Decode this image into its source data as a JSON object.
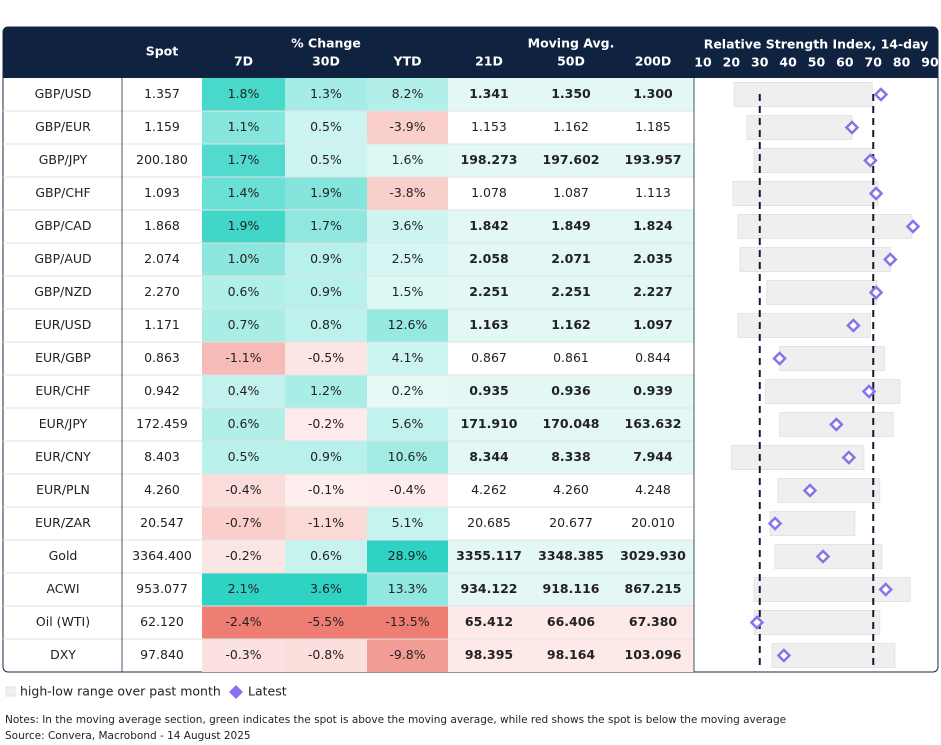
{
  "table": {
    "headers": {
      "spot": "Spot",
      "pct_change": "% Change",
      "moving_avg": "Moving Avg.",
      "columns": [
        "7D",
        "30D",
        "YTD",
        "21D",
        "50D",
        "200D"
      ]
    },
    "heat_colors": {
      "positive": "#2ed3c3",
      "negative": "#ee7d74"
    },
    "ma_colors": {
      "above": "#1cc1aa",
      "below": "#e2655d",
      "above_fill": "#e3f8f4",
      "below_fill": "#fde9e8"
    },
    "rows": [
      {
        "name": "GBP/USD",
        "spot": "1.357",
        "pct": [
          "1.8%",
          "1.3%",
          "8.2%"
        ],
        "ma": [
          "1.341",
          "1.350",
          "1.300"
        ]
      },
      {
        "name": "GBP/EUR",
        "spot": "1.159",
        "pct": [
          "1.1%",
          "0.5%",
          "-3.9%"
        ],
        "ma": [
          "1.153",
          "1.162",
          "1.185"
        ]
      },
      {
        "name": "GBP/JPY",
        "spot": "200.180",
        "pct": [
          "1.7%",
          "0.5%",
          "1.6%"
        ],
        "ma": [
          "198.273",
          "197.602",
          "193.957"
        ]
      },
      {
        "name": "GBP/CHF",
        "spot": "1.093",
        "pct": [
          "1.4%",
          "1.9%",
          "-3.8%"
        ],
        "ma": [
          "1.078",
          "1.087",
          "1.113"
        ]
      },
      {
        "name": "GBP/CAD",
        "spot": "1.868",
        "pct": [
          "1.9%",
          "1.7%",
          "3.6%"
        ],
        "ma": [
          "1.842",
          "1.849",
          "1.824"
        ]
      },
      {
        "name": "GBP/AUD",
        "spot": "2.074",
        "pct": [
          "1.0%",
          "0.9%",
          "2.5%"
        ],
        "ma": [
          "2.058",
          "2.071",
          "2.035"
        ]
      },
      {
        "name": "GBP/NZD",
        "spot": "2.270",
        "pct": [
          "0.6%",
          "0.9%",
          "1.5%"
        ],
        "ma": [
          "2.251",
          "2.251",
          "2.227"
        ]
      },
      {
        "name": "EUR/USD",
        "spot": "1.171",
        "pct": [
          "0.7%",
          "0.8%",
          "12.6%"
        ],
        "ma": [
          "1.163",
          "1.162",
          "1.097"
        ]
      },
      {
        "name": "EUR/GBP",
        "spot": "0.863",
        "pct": [
          "-1.1%",
          "-0.5%",
          "4.1%"
        ],
        "ma": [
          "0.867",
          "0.861",
          "0.844"
        ]
      },
      {
        "name": "EUR/CHF",
        "spot": "0.942",
        "pct": [
          "0.4%",
          "1.2%",
          "0.2%"
        ],
        "ma": [
          "0.935",
          "0.936",
          "0.939"
        ]
      },
      {
        "name": "EUR/JPY",
        "spot": "172.459",
        "pct": [
          "0.6%",
          "-0.2%",
          "5.6%"
        ],
        "ma": [
          "171.910",
          "170.048",
          "163.632"
        ]
      },
      {
        "name": "EUR/CNY",
        "spot": "8.403",
        "pct": [
          "0.5%",
          "0.9%",
          "10.6%"
        ],
        "ma": [
          "8.344",
          "8.338",
          "7.944"
        ]
      },
      {
        "name": "EUR/PLN",
        "spot": "4.260",
        "pct": [
          "-0.4%",
          "-0.1%",
          "-0.4%"
        ],
        "ma": [
          "4.262",
          "4.260",
          "4.248"
        ]
      },
      {
        "name": "EUR/ZAR",
        "spot": "20.547",
        "pct": [
          "-0.7%",
          "-1.1%",
          "5.1%"
        ],
        "ma": [
          "20.685",
          "20.677",
          "20.010"
        ]
      },
      {
        "name": "Gold",
        "spot": "3364.400",
        "pct": [
          "-0.2%",
          "0.6%",
          "28.9%"
        ],
        "ma": [
          "3355.117",
          "3348.385",
          "3029.930"
        ]
      },
      {
        "name": "ACWI",
        "spot": "953.077",
        "pct": [
          "2.1%",
          "3.6%",
          "13.3%"
        ],
        "ma": [
          "934.122",
          "918.116",
          "867.215"
        ]
      },
      {
        "name": "Oil (WTI)",
        "spot": "62.120",
        "pct": [
          "-2.4%",
          "-5.5%",
          "-13.5%"
        ],
        "ma": [
          "65.412",
          "66.406",
          "67.380"
        ]
      },
      {
        "name": "DXY",
        "spot": "97.840",
        "pct": [
          "-0.3%",
          "-0.8%",
          "-9.8%"
        ],
        "ma": [
          "98.395",
          "98.164",
          "103.096"
        ]
      }
    ]
  },
  "chart_data": {
    "type": "range",
    "title": "Relative Strength Index, 14-day",
    "xlim": [
      10,
      90
    ],
    "xticks": [
      10,
      20,
      30,
      40,
      50,
      60,
      70,
      80,
      90
    ],
    "reference_lines": [
      30,
      70
    ],
    "series": [
      {
        "name": "high-low range over past month",
        "color": "#efefef",
        "low": [
          21,
          25.5,
          28,
          20.6,
          22.3,
          23,
          32.5,
          22.3,
          37,
          32,
          37,
          20,
          36.4,
          33.6,
          35.4,
          28,
          28,
          34.3
        ],
        "high": [
          69.6,
          62.5,
          69.6,
          71.7,
          83.6,
          76,
          71.3,
          69,
          74,
          79.4,
          77,
          66.7,
          72.3,
          63.5,
          73,
          83,
          72.3,
          77.6
        ]
      },
      {
        "name": "Latest",
        "color": "#8b70ea",
        "values": [
          72.7,
          62.5,
          69,
          71,
          84,
          76,
          71,
          63,
          37,
          68.5,
          57,
          61.4,
          47.7,
          35.4,
          52.3,
          74.4,
          29,
          38.5
        ]
      }
    ]
  },
  "notes": [
    "Notes: In the moving average section, green indicates the spot is above the moving average, while red shows the spot is below the moving average",
    "Source: Convera, Macrobond - 14 August 2025"
  ]
}
